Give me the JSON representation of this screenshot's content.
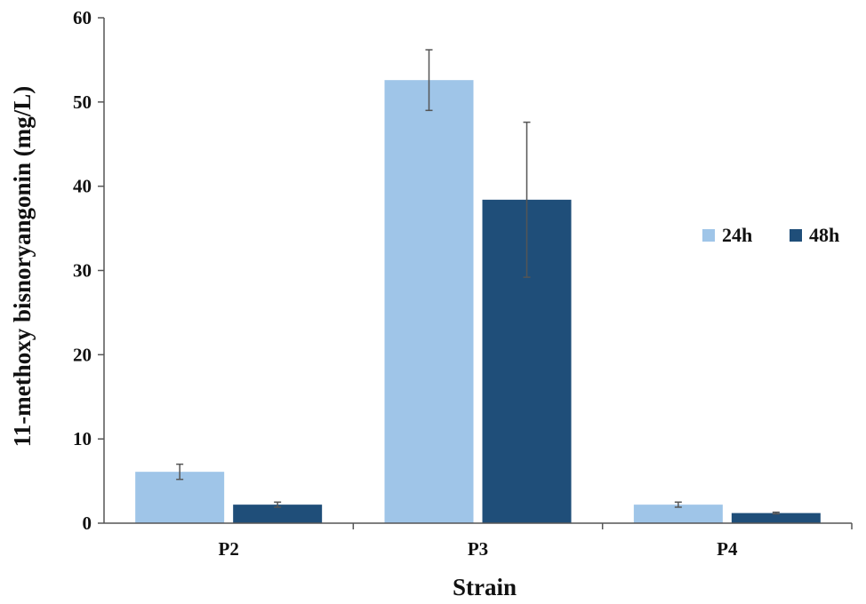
{
  "chart_data": {
    "type": "bar",
    "title": "",
    "xlabel": "Strain",
    "ylabel": "11-methoxy bisnoryangonin (mg/L)",
    "categories": [
      "P2",
      "P3",
      "P4"
    ],
    "series": [
      {
        "name": "24h",
        "color": "#9fc5e8",
        "values": [
          6.1,
          52.6,
          2.2
        ],
        "errors": [
          0.9,
          3.6,
          0.3
        ]
      },
      {
        "name": "48h",
        "color": "#1f4e79",
        "values": [
          2.2,
          38.4,
          1.2
        ],
        "errors": [
          0.3,
          9.2,
          0.1
        ]
      }
    ],
    "ylim": [
      0,
      60
    ],
    "yticks": [
      0,
      10,
      20,
      30,
      40,
      50,
      60
    ],
    "grid": false,
    "legend_position": "right",
    "error_bars": true
  }
}
